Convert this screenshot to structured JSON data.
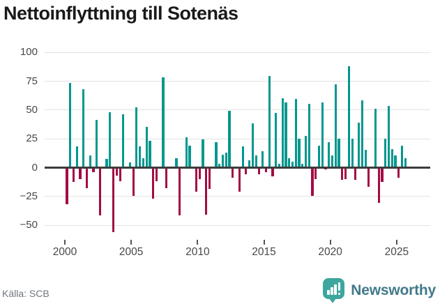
{
  "title": "Nettoinflyttning till Sotenäs",
  "source": "Källa: SCB",
  "brand": {
    "name": "Newsworthy",
    "icon": "bar-chart-speech-bubble-icon",
    "bubble_color": "#3da69e",
    "text_color": "#41798a"
  },
  "colors": {
    "positive_bar": "#00978e",
    "negative_bar": "#a30b45",
    "gridline": "#e2e2e2",
    "zero_line": "#3d3d3d",
    "axis_text": "#474747",
    "title_text": "#1a1a1a",
    "source_text": "#70757e"
  },
  "chart_data": {
    "type": "bar",
    "title": "Nettoinflyttning till Sotenäs",
    "xlabel": "",
    "ylabel": "",
    "grid": "horizontal",
    "legend": "none",
    "frequency": "quarterly",
    "ylim": [
      -62,
      108
    ],
    "y_ticks": [
      100,
      75,
      50,
      25,
      0,
      -25,
      -50
    ],
    "x_tick_labels": [
      "2000",
      "2005",
      "2010",
      "2015",
      "2020",
      "2025"
    ],
    "periods": [
      "2000Q1",
      "2000Q2",
      "2000Q3",
      "2000Q4",
      "2001Q1",
      "2001Q2",
      "2001Q3",
      "2001Q4",
      "2002Q1",
      "2002Q2",
      "2002Q3",
      "2002Q4",
      "2003Q1",
      "2003Q2",
      "2003Q3",
      "2003Q4",
      "2004Q1",
      "2004Q2",
      "2004Q3",
      "2004Q4",
      "2005Q1",
      "2005Q2",
      "2005Q3",
      "2005Q4",
      "2006Q1",
      "2006Q2",
      "2006Q3",
      "2006Q4",
      "2007Q1",
      "2007Q2",
      "2007Q3",
      "2007Q4",
      "2008Q1",
      "2008Q2",
      "2008Q3",
      "2008Q4",
      "2009Q1",
      "2009Q2",
      "2009Q3",
      "2009Q4",
      "2010Q1",
      "2010Q2",
      "2010Q3",
      "2010Q4",
      "2011Q1",
      "2011Q2",
      "2011Q3",
      "2011Q4",
      "2012Q1",
      "2012Q2",
      "2012Q3",
      "2012Q4",
      "2013Q1",
      "2013Q2",
      "2013Q3",
      "2013Q4",
      "2014Q1",
      "2014Q2",
      "2014Q3",
      "2014Q4",
      "2015Q1",
      "2015Q2",
      "2015Q3",
      "2015Q4",
      "2016Q1",
      "2016Q2",
      "2016Q3",
      "2016Q4",
      "2017Q1",
      "2017Q2",
      "2017Q3",
      "2017Q4",
      "2018Q1",
      "2018Q2",
      "2018Q3",
      "2018Q4",
      "2019Q1",
      "2019Q2",
      "2019Q3",
      "2019Q4",
      "2020Q1",
      "2020Q2",
      "2020Q3",
      "2020Q4",
      "2021Q1",
      "2021Q2",
      "2021Q3",
      "2021Q4",
      "2022Q1",
      "2022Q2",
      "2022Q3",
      "2022Q4",
      "2023Q1",
      "2023Q2",
      "2023Q3",
      "2023Q4",
      "2024Q1",
      "2024Q2",
      "2024Q3",
      "2024Q4",
      "2025Q1",
      "2025Q2",
      "2025Q3"
    ],
    "values": [
      -32,
      73,
      -13,
      18,
      -10,
      68,
      -18,
      10,
      -4,
      41,
      -42,
      0,
      7,
      48,
      -56,
      -7,
      -12,
      46,
      0,
      4,
      -25,
      52,
      18,
      8,
      35,
      23,
      -27,
      -12,
      0,
      78,
      -18,
      0,
      0,
      8,
      -42,
      0,
      26,
      19,
      0,
      -21,
      -10,
      24,
      -41,
      -19,
      0,
      22,
      3,
      11,
      13,
      49,
      -9,
      0,
      -21,
      18,
      -6,
      6,
      38,
      10,
      -6,
      14,
      -4,
      79,
      -8,
      47,
      3,
      60,
      56,
      8,
      5,
      59,
      25,
      3,
      27,
      55,
      -25,
      -10,
      19,
      56,
      -2,
      22,
      10,
      72,
      25,
      -11,
      -10,
      88,
      25,
      -11,
      39,
      58,
      15,
      -17,
      0,
      51,
      -31,
      -13,
      25,
      53,
      16,
      10,
      -9,
      19,
      8
    ]
  }
}
